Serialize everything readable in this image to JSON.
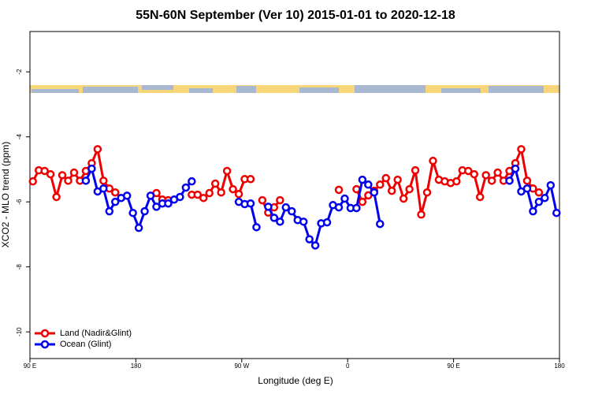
{
  "chart_data": {
    "type": "line",
    "title": "55N-60N September (Ver 10)   2015-01-01 to 2020-12-18",
    "x_label": "Longitude (deg E)",
    "y_label": "XCO2 - MLO trend (ppm)",
    "x": [
      92.5,
      97.5,
      102.5,
      107.5,
      112.5,
      117.5,
      122.5,
      127.5,
      132.5,
      137.5,
      142.5,
      147.5,
      152.5,
      157.5,
      162.5,
      167.5,
      172.5,
      177.5,
      182.5,
      187.5,
      192.5,
      197.5,
      202.5,
      207.5,
      212.5,
      217.5,
      222.5,
      227.5,
      232.5,
      237.5,
      242.5,
      247.5,
      252.5,
      257.5,
      262.5,
      267.5,
      272.5,
      277.5,
      282.5,
      287.5,
      292.5,
      297.5,
      302.5,
      307.5,
      312.5,
      317.5,
      322.5,
      327.5,
      332.5,
      337.5,
      342.5,
      347.5,
      352.5,
      357.5,
      362.5,
      367.5,
      372.5,
      377.5,
      382.5,
      387.5,
      392.5,
      397.5,
      402.5,
      407.5,
      412.5,
      417.5,
      422.5,
      427.5,
      432.5,
      437.5,
      442.5,
      447.5,
      452.5,
      457.5,
      462.5,
      467.5,
      472.5,
      477.5,
      482.5,
      487.5,
      492.5,
      497.5,
      502.5,
      507.5,
      512.5,
      517.5,
      522.5,
      527.5,
      532.5,
      537.5
    ],
    "series": [
      {
        "name": "Land (Nadir&Glint)",
        "color": "#ee0000",
        "values": [
          -5.37,
          -5.03,
          -5.05,
          -5.15,
          -5.85,
          -5.18,
          -5.35,
          -5.1,
          -5.35,
          -5.05,
          -4.81,
          -4.38,
          -5.35,
          -5.59,
          -5.71,
          null,
          null,
          null,
          null,
          null,
          null,
          -5.73,
          -5.93,
          -5.95,
          null,
          null,
          null,
          -5.78,
          -5.78,
          -5.88,
          -5.73,
          -5.44,
          -5.71,
          -5.05,
          -5.61,
          -5.76,
          -5.3,
          -5.3,
          null,
          -5.95,
          -6.33,
          -6.17,
          -5.95,
          null,
          null,
          null,
          null,
          null,
          null,
          null,
          null,
          null,
          -5.63,
          null,
          null,
          -5.61,
          -6.0,
          -5.8,
          -5.66,
          -5.47,
          -5.27,
          -5.66,
          -5.32,
          -5.9,
          -5.61,
          -5.03,
          -6.39,
          -5.71,
          -4.74,
          -5.32,
          -5.37,
          -5.42,
          -5.37,
          -5.03,
          -5.05,
          -5.15,
          -5.85,
          -5.18,
          -5.35,
          -5.1,
          -5.35,
          -5.05,
          -4.81,
          -4.38,
          -5.35,
          -5.59,
          -5.71,
          null,
          null,
          null
        ]
      },
      {
        "name": "Ocean (Glint)",
        "color": "#0000ee",
        "values": [
          null,
          null,
          null,
          null,
          null,
          null,
          null,
          null,
          null,
          -5.35,
          -4.98,
          -5.68,
          -5.59,
          -6.29,
          -6.0,
          -5.88,
          -5.81,
          -6.34,
          -6.8,
          -6.29,
          -5.81,
          -6.15,
          -6.05,
          -6.05,
          -5.93,
          -5.85,
          -5.56,
          -5.37,
          null,
          null,
          null,
          null,
          null,
          null,
          null,
          -6.0,
          -6.07,
          -6.05,
          -6.78,
          null,
          -6.15,
          -6.49,
          -6.61,
          -6.17,
          -6.29,
          -6.56,
          -6.61,
          -7.15,
          -7.34,
          -6.66,
          -6.63,
          -6.1,
          -6.17,
          -5.9,
          -6.19,
          -6.19,
          -5.32,
          -5.47,
          -5.71,
          -6.68,
          null,
          null,
          null,
          null,
          null,
          null,
          null,
          null,
          null,
          null,
          null,
          null,
          null,
          null,
          null,
          null,
          null,
          null,
          null,
          null,
          null,
          -5.35,
          -4.98,
          -5.68,
          -5.59,
          -6.29,
          -6.0,
          -5.88,
          -5.49,
          -6.34
        ]
      }
    ],
    "xlim": [
      90,
      540
    ],
    "xticks": [
      {
        "value": 90,
        "label": "90 E"
      },
      180,
      {
        "value": 270,
        "label": "90 W"
      },
      {
        "value": 360,
        "label": "0"
      },
      {
        "value": 450,
        "label": "90 E"
      },
      {
        "value": 540,
        "label": "180"
      }
    ],
    "ylim": [
      -10.82,
      -0.76
    ],
    "yticks": [
      -2,
      -4,
      -6,
      -8,
      -10
    ],
    "legend": "bottom-left"
  }
}
